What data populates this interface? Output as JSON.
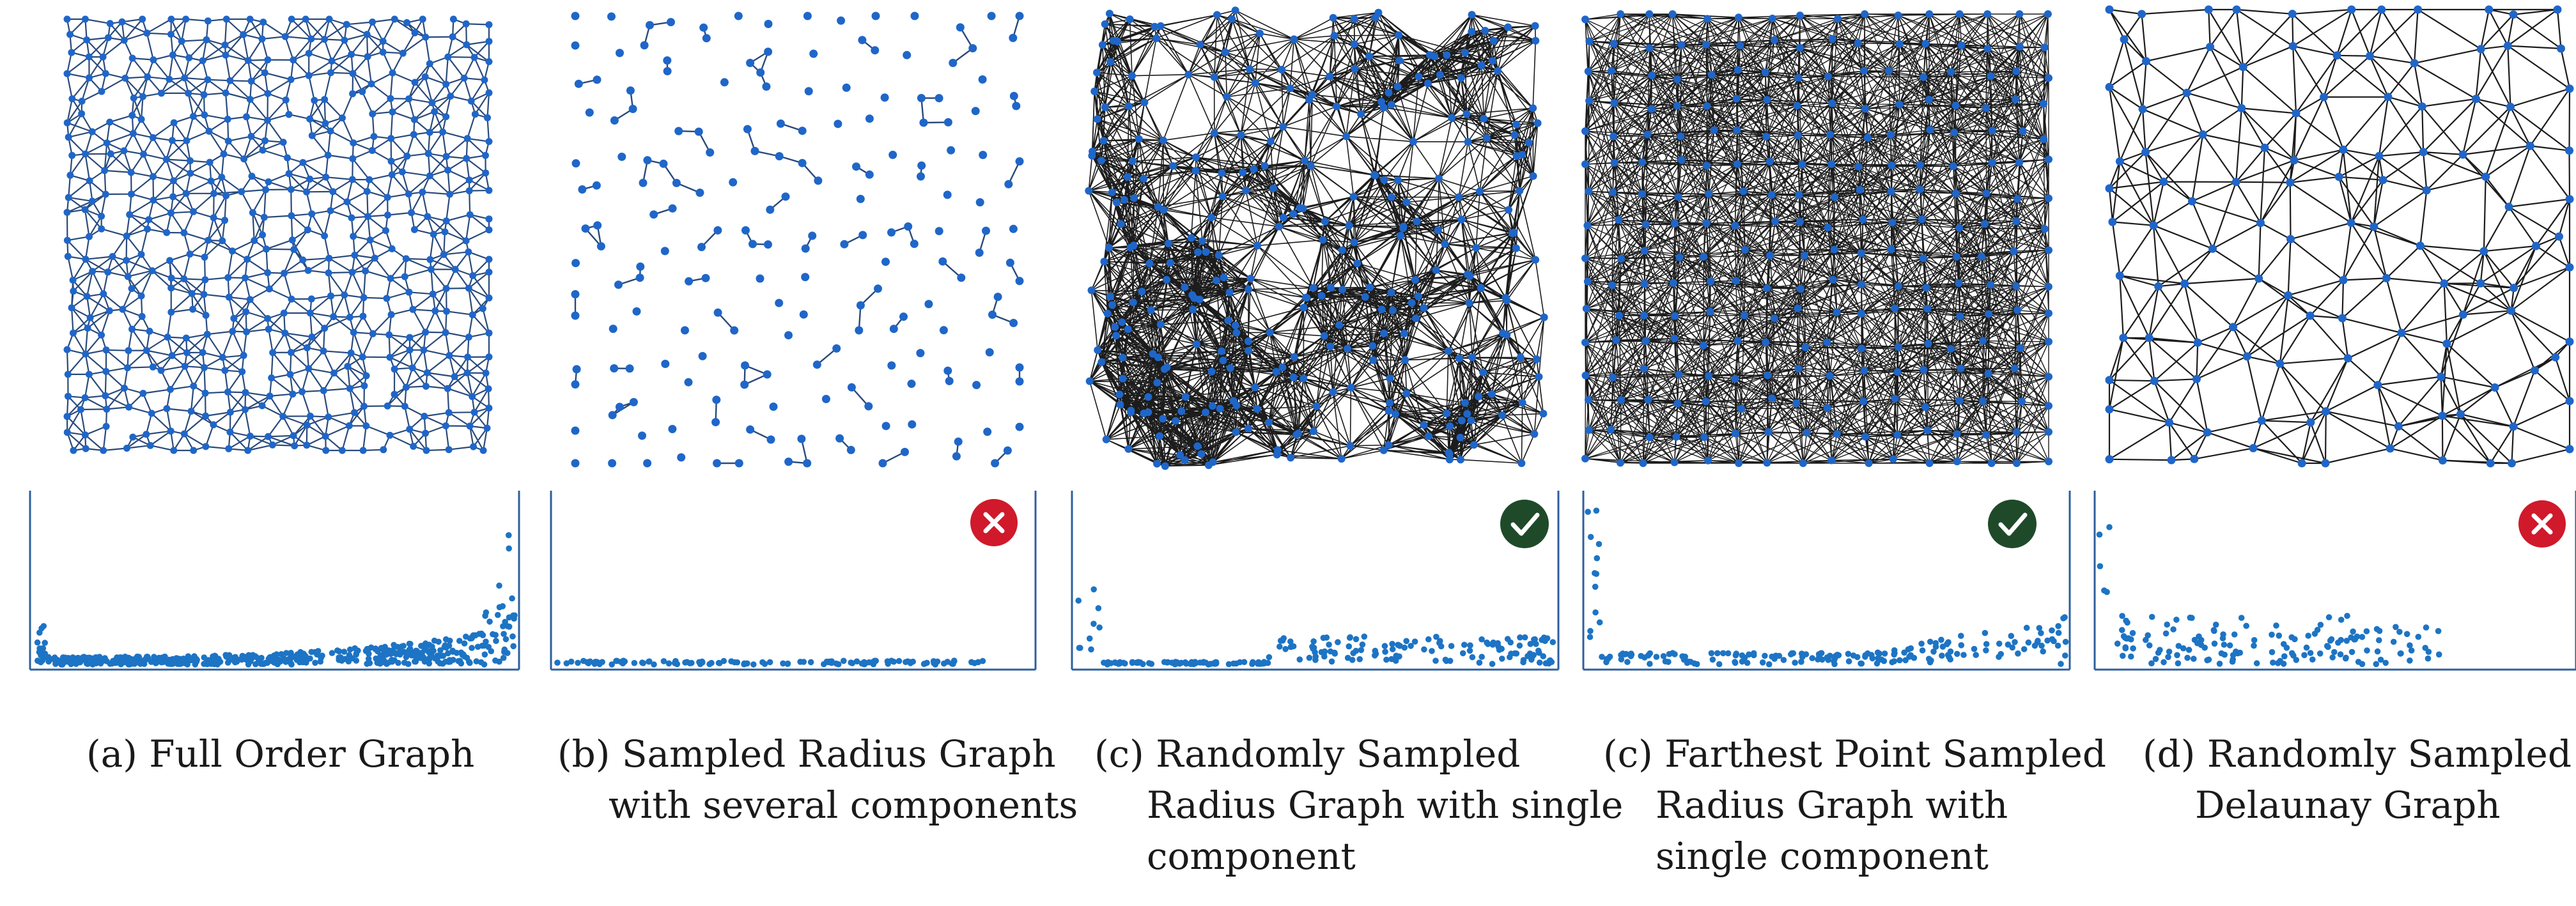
{
  "panels": [
    {
      "id": "a",
      "caption_lines": [
        "(a) Full Order Graph"
      ],
      "badge": "none"
    },
    {
      "id": "b",
      "caption_lines": [
        "(b) Sampled Radius Graph",
        "with several components"
      ],
      "badge": "cross"
    },
    {
      "id": "c1",
      "caption_lines": [
        "(c) Randomly Sampled",
        "Radius Graph with single",
        "component"
      ],
      "badge": "check"
    },
    {
      "id": "c2",
      "caption_lines": [
        "(c) Farthest Point Sampled",
        "Radius Graph with",
        "single component"
      ],
      "badge": "check"
    },
    {
      "id": "d",
      "caption_lines": [
        "(d) Randomly Sampled",
        "Delaunay Graph"
      ],
      "badge": "cross"
    }
  ],
  "colors": {
    "node": "#1f66c9",
    "edge": "#1c1c1c",
    "edge_a": "#2a4a7a",
    "scatter": "#1d74c4",
    "axis": "#2d5f9e",
    "check_bg": "#1f4a2a",
    "cross_bg": "#d0192b"
  },
  "icons": {
    "check": "checkmark-icon",
    "cross": "cross-icon"
  }
}
